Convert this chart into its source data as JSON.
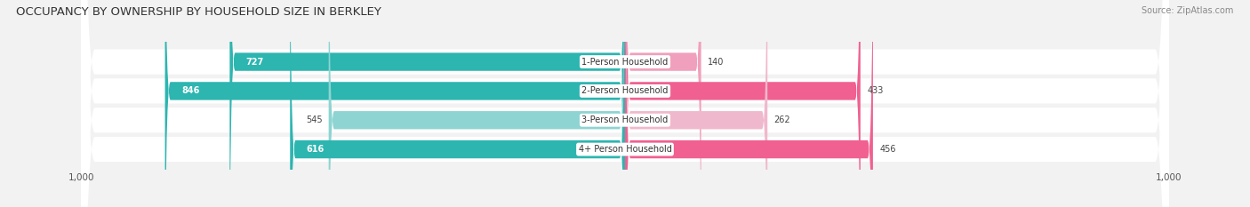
{
  "title": "OCCUPANCY BY OWNERSHIP BY HOUSEHOLD SIZE IN BERKLEY",
  "source": "Source: ZipAtlas.com",
  "categories": [
    "1-Person Household",
    "2-Person Household",
    "3-Person Household",
    "4+ Person Household"
  ],
  "owner_values": [
    727,
    846,
    545,
    616
  ],
  "renter_values": [
    140,
    433,
    262,
    456
  ],
  "owner_colors": [
    "#2db5b0",
    "#2db5b0",
    "#8dd4d2",
    "#2db5b0"
  ],
  "renter_colors": [
    "#f0a0bc",
    "#f06090",
    "#f0b8cc",
    "#f06090"
  ],
  "axis_max": 1000,
  "bg_color": "#f2f2f2",
  "bar_bg_color": "#e4e4e4",
  "row_bg_color": "#ebebeb",
  "title_fontsize": 9.5,
  "source_fontsize": 7,
  "tick_fontsize": 7.5,
  "cat_fontsize": 7,
  "val_fontsize": 7,
  "legend_fontsize": 7.5
}
